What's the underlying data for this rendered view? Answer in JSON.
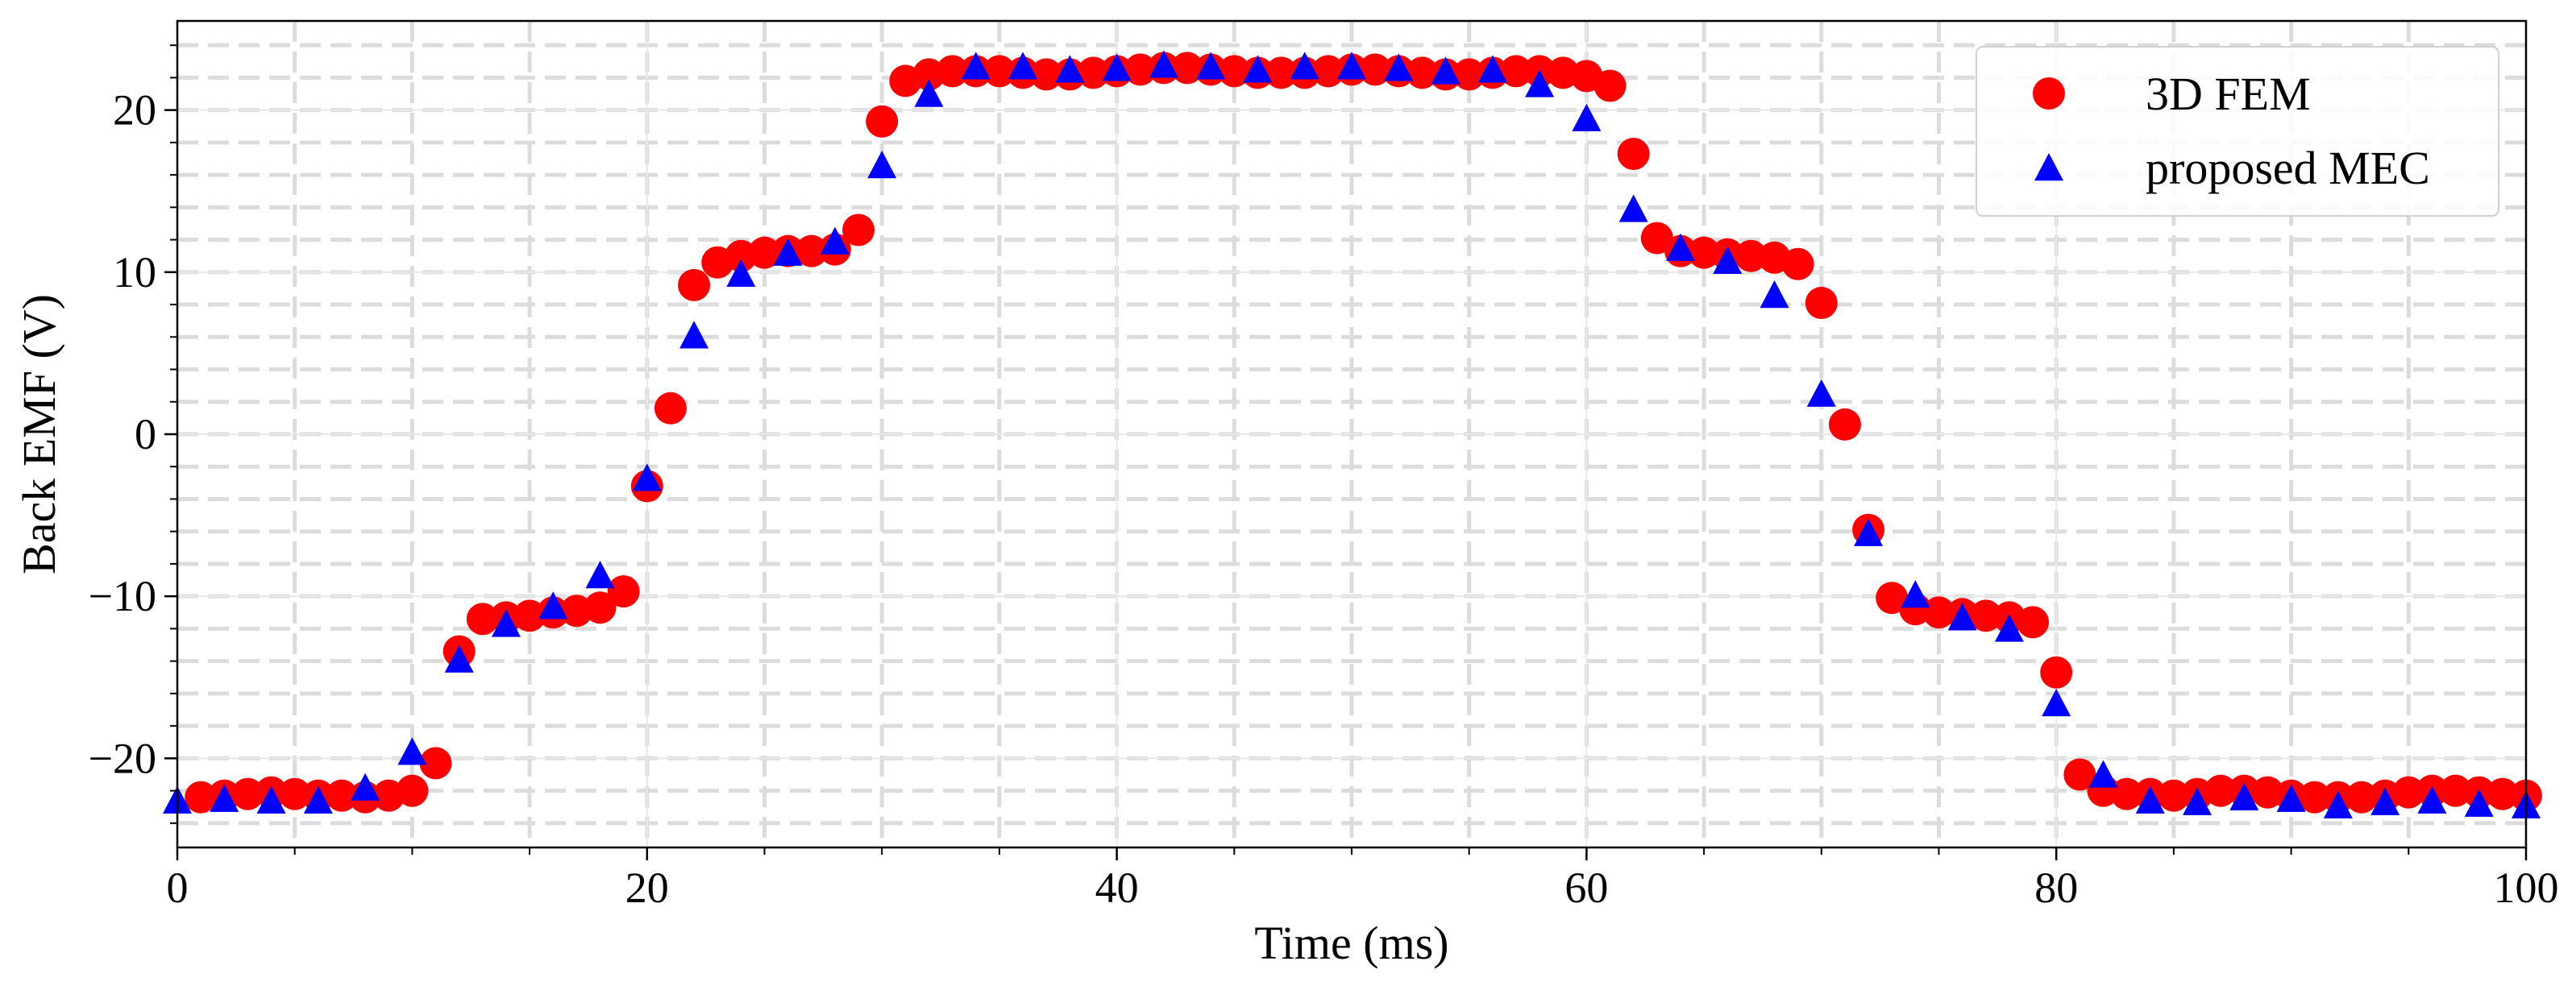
{
  "chart_data": {
    "type": "scatter",
    "xlabel": "Time (ms)",
    "ylabel": "Back EMF (V)",
    "xlim": [
      0,
      100
    ],
    "ylim": [
      -25.5,
      25.5
    ],
    "grid": true,
    "legend_position": "top-right",
    "x_ticks": [
      0,
      20,
      40,
      60,
      80,
      100
    ],
    "x_tick_labels": [
      "0",
      "20",
      "40",
      "60",
      "80",
      "100"
    ],
    "y_ticks": [
      -20,
      -10,
      0,
      10,
      20
    ],
    "y_tick_labels": [
      "−20",
      "−10",
      "0",
      "10",
      "20"
    ],
    "series": [
      {
        "name": "3D FEM",
        "marker": "circle",
        "color": "#ff0000",
        "points": [
          [
            1,
            -22.4
          ],
          [
            2,
            -22.3
          ],
          [
            3,
            -22.2
          ],
          [
            4,
            -22.1
          ],
          [
            5,
            -22.2
          ],
          [
            6,
            -22.3
          ],
          [
            7,
            -22.3
          ],
          [
            8,
            -22.4
          ],
          [
            9,
            -22.3
          ],
          [
            10,
            -22.0
          ],
          [
            11,
            -20.3
          ],
          [
            12,
            -13.4
          ],
          [
            13,
            -11.4
          ],
          [
            14,
            -11.3
          ],
          [
            15,
            -11.2
          ],
          [
            16,
            -11.0
          ],
          [
            17,
            -10.9
          ],
          [
            18,
            -10.7
          ],
          [
            19,
            -9.7
          ],
          [
            20,
            -3.2
          ],
          [
            21,
            1.6
          ],
          [
            22,
            9.2
          ],
          [
            23,
            10.6
          ],
          [
            24,
            11.0
          ],
          [
            25,
            11.2
          ],
          [
            26,
            11.3
          ],
          [
            27,
            11.3
          ],
          [
            28,
            11.4
          ],
          [
            29,
            12.6
          ],
          [
            30,
            19.3
          ],
          [
            31,
            21.8
          ],
          [
            32,
            22.2
          ],
          [
            33,
            22.4
          ],
          [
            34,
            22.4
          ],
          [
            35,
            22.4
          ],
          [
            36,
            22.3
          ],
          [
            37,
            22.2
          ],
          [
            38,
            22.2
          ],
          [
            39,
            22.3
          ],
          [
            40,
            22.4
          ],
          [
            41,
            22.5
          ],
          [
            42,
            22.6
          ],
          [
            43,
            22.6
          ],
          [
            44,
            22.5
          ],
          [
            45,
            22.4
          ],
          [
            46,
            22.3
          ],
          [
            47,
            22.3
          ],
          [
            48,
            22.3
          ],
          [
            49,
            22.4
          ],
          [
            50,
            22.5
          ],
          [
            51,
            22.5
          ],
          [
            52,
            22.4
          ],
          [
            53,
            22.3
          ],
          [
            54,
            22.2
          ],
          [
            55,
            22.2
          ],
          [
            56,
            22.3
          ],
          [
            57,
            22.4
          ],
          [
            58,
            22.4
          ],
          [
            59,
            22.3
          ],
          [
            60,
            22.1
          ],
          [
            61,
            21.5
          ],
          [
            62,
            17.3
          ],
          [
            63,
            12.1
          ],
          [
            64,
            11.3
          ],
          [
            65,
            11.2
          ],
          [
            66,
            11.1
          ],
          [
            67,
            11.0
          ],
          [
            68,
            10.9
          ],
          [
            69,
            10.5
          ],
          [
            70,
            8.1
          ],
          [
            71,
            0.6
          ],
          [
            72,
            -5.9
          ],
          [
            73,
            -10.1
          ],
          [
            74,
            -10.8
          ],
          [
            75,
            -11.0
          ],
          [
            76,
            -11.1
          ],
          [
            77,
            -11.2
          ],
          [
            78,
            -11.3
          ],
          [
            79,
            -11.6
          ],
          [
            80,
            -14.7
          ],
          [
            81,
            -21.0
          ],
          [
            82,
            -22.0
          ],
          [
            83,
            -22.2
          ],
          [
            84,
            -22.2
          ],
          [
            85,
            -22.3
          ],
          [
            86,
            -22.2
          ],
          [
            87,
            -22.0
          ],
          [
            88,
            -22.0
          ],
          [
            89,
            -22.1
          ],
          [
            90,
            -22.3
          ],
          [
            91,
            -22.4
          ],
          [
            92,
            -22.4
          ],
          [
            93,
            -22.4
          ],
          [
            94,
            -22.3
          ],
          [
            95,
            -22.1
          ],
          [
            96,
            -22.0
          ],
          [
            97,
            -22.0
          ],
          [
            98,
            -22.1
          ],
          [
            99,
            -22.2
          ],
          [
            100,
            -22.3
          ]
        ]
      },
      {
        "name": "proposed MEC",
        "marker": "triangle",
        "color": "#0000ff",
        "points": [
          [
            0,
            -22.6
          ],
          [
            2,
            -22.5
          ],
          [
            4,
            -22.6
          ],
          [
            6,
            -22.6
          ],
          [
            8,
            -21.8
          ],
          [
            10,
            -19.6
          ],
          [
            12,
            -13.9
          ],
          [
            14,
            -11.7
          ],
          [
            16,
            -10.6
          ],
          [
            18,
            -8.7
          ],
          [
            20,
            -2.7
          ],
          [
            22,
            6.1
          ],
          [
            24,
            9.9
          ],
          [
            26,
            11.2
          ],
          [
            28,
            11.9
          ],
          [
            30,
            16.6
          ],
          [
            32,
            21.0
          ],
          [
            34,
            22.7
          ],
          [
            36,
            22.7
          ],
          [
            38,
            22.5
          ],
          [
            40,
            22.6
          ],
          [
            42,
            22.8
          ],
          [
            44,
            22.7
          ],
          [
            46,
            22.5
          ],
          [
            48,
            22.7
          ],
          [
            50,
            22.7
          ],
          [
            52,
            22.6
          ],
          [
            54,
            22.4
          ],
          [
            56,
            22.5
          ],
          [
            58,
            21.6
          ],
          [
            60,
            19.5
          ],
          [
            62,
            13.9
          ],
          [
            64,
            11.5
          ],
          [
            66,
            10.7
          ],
          [
            68,
            8.6
          ],
          [
            70,
            2.5
          ],
          [
            72,
            -6.1
          ],
          [
            74,
            -9.9
          ],
          [
            76,
            -11.3
          ],
          [
            78,
            -12.0
          ],
          [
            80,
            -16.6
          ],
          [
            82,
            -21.0
          ],
          [
            84,
            -22.6
          ],
          [
            86,
            -22.7
          ],
          [
            88,
            -22.4
          ],
          [
            90,
            -22.5
          ],
          [
            92,
            -22.9
          ],
          [
            94,
            -22.7
          ],
          [
            96,
            -22.6
          ],
          [
            98,
            -22.8
          ],
          [
            100,
            -22.9
          ]
        ]
      }
    ]
  }
}
